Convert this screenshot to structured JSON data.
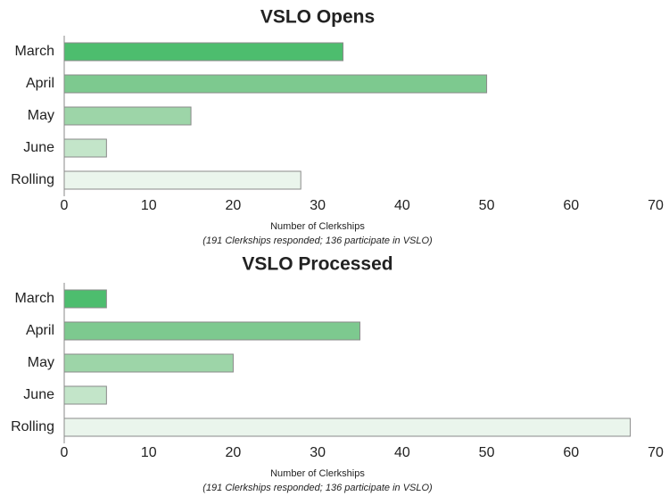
{
  "chart_data": [
    {
      "type": "bar",
      "orientation": "horizontal",
      "title": "VSLO Opens",
      "categories": [
        "March",
        "April",
        "May",
        "June",
        "Rolling"
      ],
      "values": [
        33,
        50,
        15,
        5,
        28
      ],
      "colors": [
        "#4dbd6e",
        "#7dc98f",
        "#9dd5a8",
        "#c3e5c9",
        "#eaf5ec"
      ],
      "xlim": [
        0,
        70
      ],
      "xticks": [
        0,
        10,
        20,
        30,
        40,
        50,
        60,
        70
      ],
      "xlabel": "Number of Clerkships",
      "note": "(191 Clerkships responded; 136 participate in VSLO)"
    },
    {
      "type": "bar",
      "orientation": "horizontal",
      "title": "VSLO Processed",
      "categories": [
        "March",
        "April",
        "May",
        "June",
        "Rolling"
      ],
      "values": [
        5,
        35,
        20,
        5,
        67
      ],
      "colors": [
        "#4dbd6e",
        "#7dc98f",
        "#9dd5a8",
        "#c3e5c9",
        "#eaf5ec"
      ],
      "xlim": [
        0,
        70
      ],
      "xticks": [
        0,
        10,
        20,
        30,
        40,
        50,
        60,
        70
      ],
      "xlabel": "Number of Clerkships",
      "note": "(191 Clerkships responded; 136 participate in VSLO)"
    }
  ]
}
